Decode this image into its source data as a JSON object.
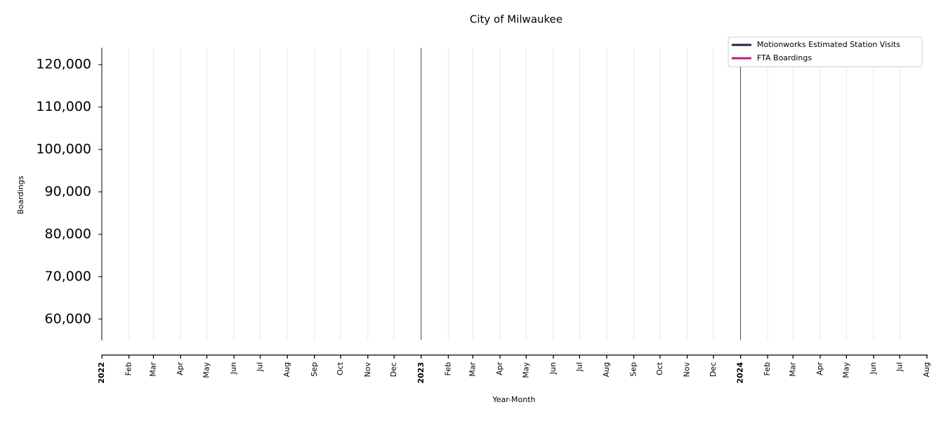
{
  "chart_data": {
    "type": "line",
    "title": "City of Milwaukee",
    "x_label": "Year-Month",
    "y_label": "Boardings",
    "x": [],
    "series": [
      {
        "name": "Motionworks Estimated Station Visits",
        "color": "#22204f",
        "values": []
      },
      {
        "name": "FTA Boardings",
        "color": "#c8177f",
        "values": []
      }
    ],
    "xlim": [
      "2022-01",
      "2024-08"
    ],
    "xticks": [
      {
        "value": "2022-01",
        "label": "2022"
      },
      {
        "value": "2022-02",
        "label": "Feb"
      },
      {
        "value": "2022-03",
        "label": "Mar"
      },
      {
        "value": "2022-04",
        "label": "Apr"
      },
      {
        "value": "2022-05",
        "label": "May"
      },
      {
        "value": "2022-06",
        "label": "Jun"
      },
      {
        "value": "2022-07",
        "label": "Jul"
      },
      {
        "value": "2022-08",
        "label": "Aug"
      },
      {
        "value": "2022-09",
        "label": "Sep"
      },
      {
        "value": "2022-10",
        "label": "Oct"
      },
      {
        "value": "2022-11",
        "label": "Nov"
      },
      {
        "value": "2022-12",
        "label": "Dec"
      },
      {
        "value": "2023-01",
        "label": "2023"
      },
      {
        "value": "2023-02",
        "label": "Feb"
      },
      {
        "value": "2023-03",
        "label": "Mar"
      },
      {
        "value": "2023-04",
        "label": "Apr"
      },
      {
        "value": "2023-05",
        "label": "May"
      },
      {
        "value": "2023-06",
        "label": "Jun"
      },
      {
        "value": "2023-07",
        "label": "Jul"
      },
      {
        "value": "2023-08",
        "label": "Aug"
      },
      {
        "value": "2023-09",
        "label": "Sep"
      },
      {
        "value": "2023-10",
        "label": "Oct"
      },
      {
        "value": "2023-11",
        "label": "Nov"
      },
      {
        "value": "2023-12",
        "label": "Dec"
      },
      {
        "value": "2024-01",
        "label": "2024"
      },
      {
        "value": "2024-02",
        "label": "Feb"
      },
      {
        "value": "2024-03",
        "label": "Mar"
      },
      {
        "value": "2024-04",
        "label": "Apr"
      },
      {
        "value": "2024-05",
        "label": "May"
      },
      {
        "value": "2024-06",
        "label": "Jun"
      },
      {
        "value": "2024-07",
        "label": "Jul"
      },
      {
        "value": "2024-08",
        "label": "Aug"
      }
    ],
    "ylim": [
      55000,
      124000
    ],
    "yticks": [
      {
        "value": 60000,
        "label": "60,000"
      },
      {
        "value": 70000,
        "label": "70,000"
      },
      {
        "value": 80000,
        "label": "80,000"
      },
      {
        "value": 90000,
        "label": "90,000"
      },
      {
        "value": 100000,
        "label": "100,000"
      },
      {
        "value": 110000,
        "label": "110,000"
      },
      {
        "value": 120000,
        "label": "120,000"
      }
    ],
    "grid": true,
    "legend": "upper-right"
  }
}
